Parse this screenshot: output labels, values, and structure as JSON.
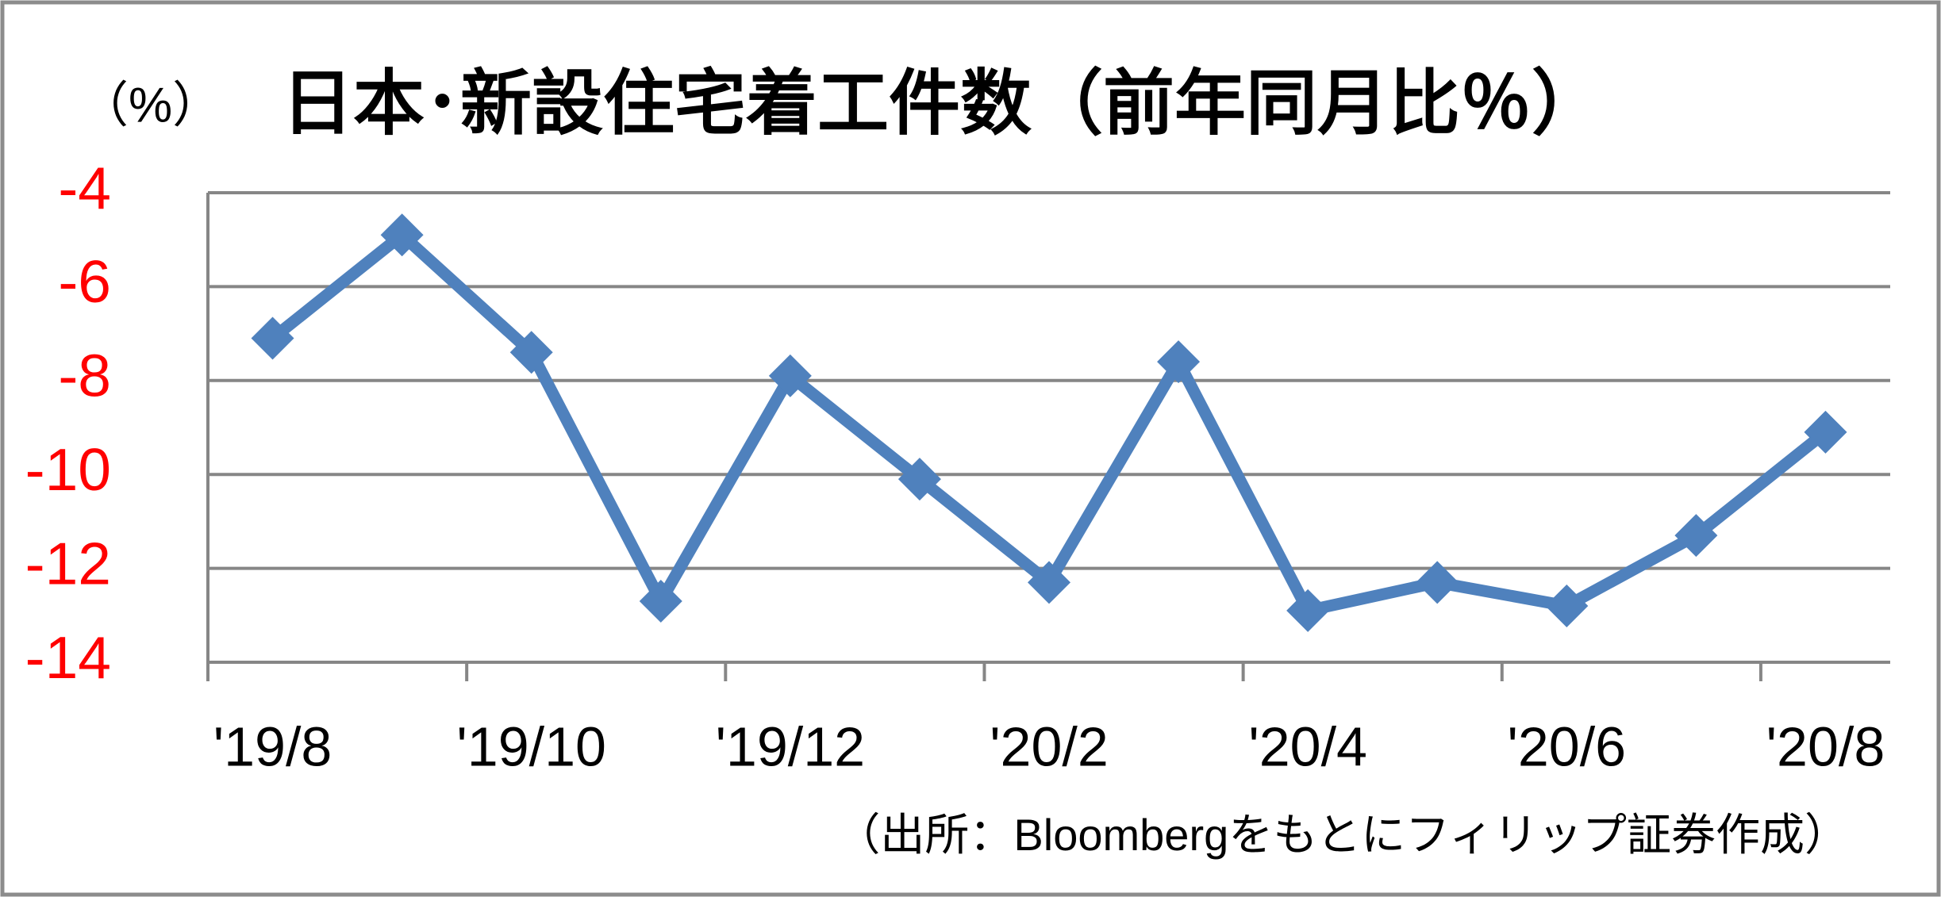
{
  "chart_data": {
    "type": "line",
    "title": "日本･新設住宅着工件数（前年同月比％）",
    "y_unit_label": "（%）",
    "source": "（出所：Bloombergをもとにフィリップ証券作成）",
    "categories": [
      "'19/8",
      null,
      "'19/10",
      null,
      "'19/12",
      null,
      "'20/2",
      null,
      "'20/4",
      null,
      "'20/6",
      null,
      "'20/8"
    ],
    "values": [
      -7.1,
      -4.9,
      -7.4,
      -12.7,
      -7.9,
      -10.1,
      -12.3,
      -7.6,
      -12.9,
      -12.3,
      -12.8,
      -11.3,
      -9.1
    ],
    "color": "#4f81bd",
    "ylim": [
      -14,
      -4
    ],
    "yticks": [
      -4,
      -6,
      -8,
      -10,
      -12,
      -14
    ],
    "grid": true
  }
}
